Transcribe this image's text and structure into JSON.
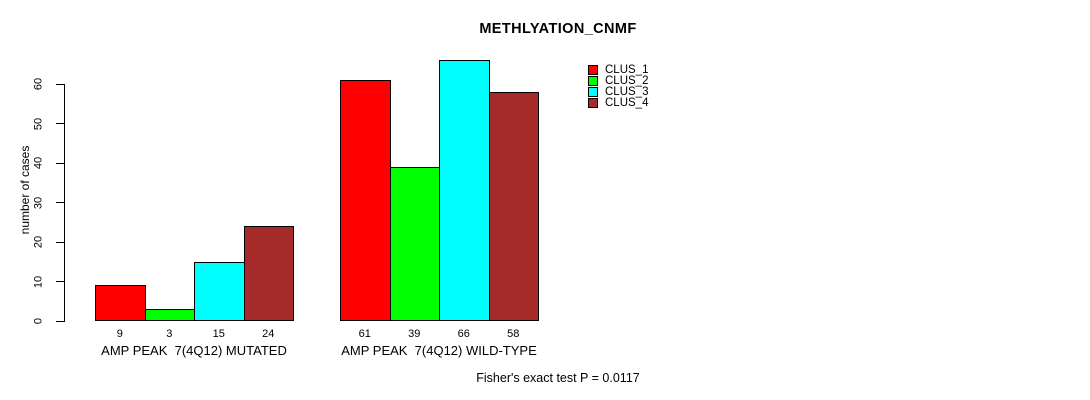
{
  "title": "METHLYATION_CNMF",
  "y_axis_label": "number of cases",
  "footer": "Fisher's exact test P = 0.0117",
  "chart_data": {
    "type": "bar",
    "title": "METHLYATION_CNMF",
    "xlabel": "",
    "ylabel": "number of cases",
    "ylim": [
      0,
      66
    ],
    "yticks": [
      0,
      10,
      20,
      30,
      40,
      50,
      60
    ],
    "grid": false,
    "legend_position": "right",
    "bar_value_labels": true,
    "categories": [
      "AMP PEAK  7(4Q12) MUTATED",
      "AMP PEAK  7(4Q12) WILD-TYPE"
    ],
    "series": [
      {
        "name": "CLUS_1",
        "color": "#FF0000",
        "values": [
          9,
          61
        ]
      },
      {
        "name": "CLUS_2",
        "color": "#00FF00",
        "values": [
          3,
          39
        ]
      },
      {
        "name": "CLUS_3",
        "color": "#00FFFF",
        "values": [
          15,
          66
        ]
      },
      {
        "name": "CLUS_4",
        "color": "#A52A2A",
        "values": [
          24,
          58
        ]
      }
    ],
    "annotation": "Fisher's exact test P = 0.0117"
  }
}
